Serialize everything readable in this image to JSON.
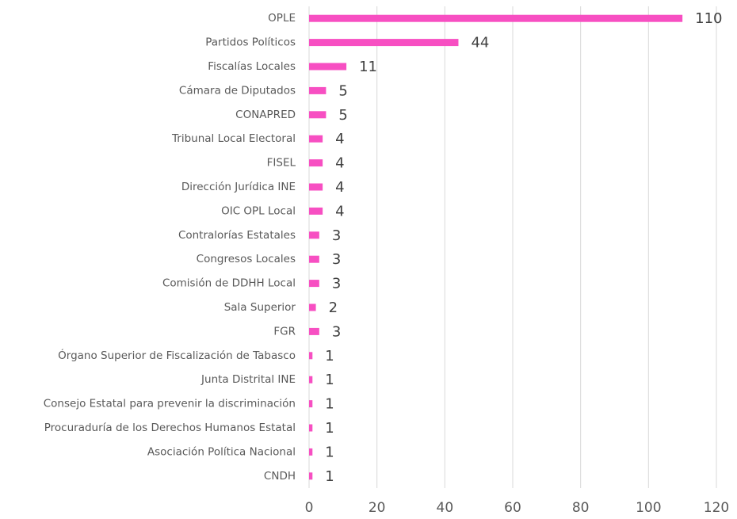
{
  "chart_data": {
    "type": "bar",
    "orientation": "horizontal",
    "categories": [
      "OPLE",
      "Partidos Políticos",
      "Fiscalías Locales",
      "Cámara de Diputados",
      "CONAPRED",
      "Tribunal Local Electoral",
      "FISEL",
      "Dirección Jurídica INE",
      "OIC OPL Local",
      "Contralorías Estatales",
      "Congresos Locales",
      "Comisión de DDHH Local",
      "Sala Superior",
      "FGR",
      "Órgano Superior de Fiscalización de Tabasco",
      "Junta Distrital INE",
      "Consejo Estatal para prevenir la discriminación",
      "Procuraduría de los Derechos Humanos Estatal",
      "Asociación Política Nacional",
      "CNDH"
    ],
    "values": [
      110,
      44,
      11,
      5,
      5,
      4,
      4,
      4,
      4,
      3,
      3,
      3,
      2,
      3,
      1,
      1,
      1,
      1,
      1,
      1
    ],
    "color": "#f74fc2",
    "xlim": [
      0,
      120
    ],
    "xticks": [
      0,
      20,
      40,
      60,
      80,
      100,
      120
    ],
    "grid": true
  }
}
